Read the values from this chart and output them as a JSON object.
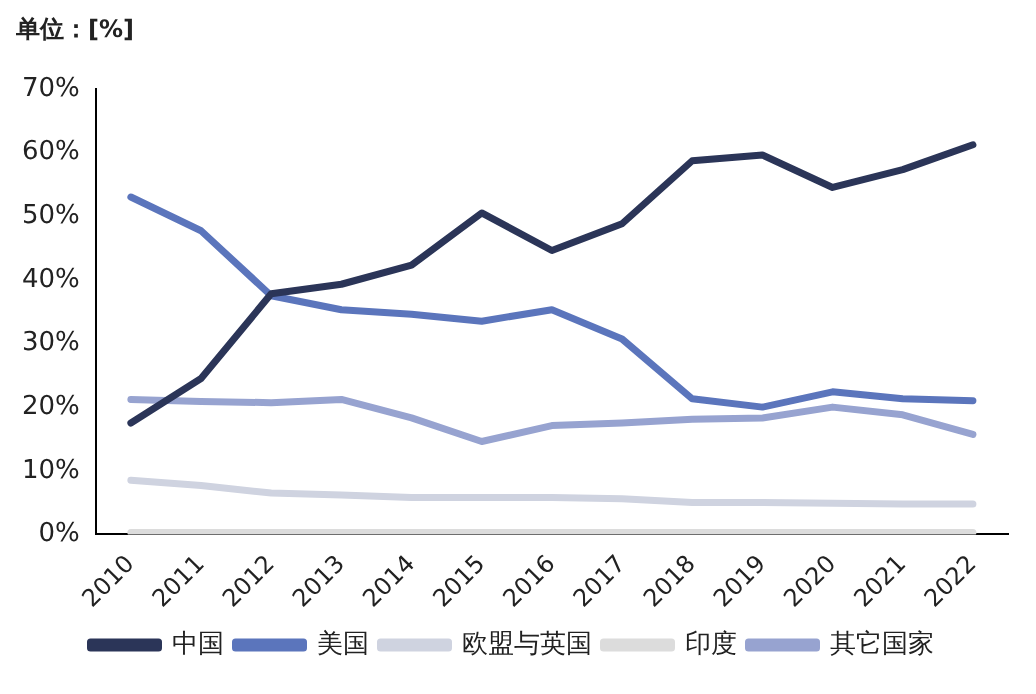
{
  "chart_data": {
    "type": "line",
    "title": "单位：[%]",
    "categories": [
      "2010",
      "2011",
      "2012",
      "2013",
      "2014",
      "2015",
      "2016",
      "2017",
      "2018",
      "2019",
      "2020",
      "2021",
      "2022"
    ],
    "series": [
      {
        "name": "中国",
        "color": "#2b3558",
        "values": [
          17.5,
          24.5,
          37.8,
          39.3,
          42.3,
          50.5,
          44.6,
          48.8,
          58.7,
          59.6,
          54.5,
          57.3,
          61.2
        ]
      },
      {
        "name": "美国",
        "color": "#5b75bc",
        "values": [
          53,
          47.7,
          37.5,
          35.3,
          34.6,
          33.5,
          35.3,
          30.7,
          21.3,
          20,
          22.4,
          21.3,
          21
        ]
      },
      {
        "name": "欧盟与英国",
        "color": "#cfd3e0",
        "values": [
          8.5,
          7.7,
          6.5,
          6.2,
          5.8,
          5.8,
          5.8,
          5.6,
          5,
          5,
          4.9,
          4.8,
          4.8
        ]
      },
      {
        "name": "印度",
        "color": "#dcdcdc",
        "values": [
          0.3,
          0.3,
          0.3,
          0.3,
          0.3,
          0.3,
          0.3,
          0.3,
          0.3,
          0.3,
          0.3,
          0.3,
          0.3
        ]
      },
      {
        "name": "其它国家",
        "color": "#97a3d0",
        "values": [
          21.2,
          20.9,
          20.7,
          21.2,
          18.3,
          14.6,
          17.1,
          17.5,
          18.1,
          18.3,
          20,
          18.8,
          15.7
        ]
      }
    ],
    "ylim": [
      0,
      70
    ],
    "yticks": [
      {
        "value": 0,
        "label": "0%"
      },
      {
        "value": 10,
        "label": "10%"
      },
      {
        "value": 20,
        "label": "20%"
      },
      {
        "value": 30,
        "label": "30%"
      },
      {
        "value": 40,
        "label": "40%"
      },
      {
        "value": 50,
        "label": "50%"
      },
      {
        "value": 60,
        "label": "60%"
      },
      {
        "value": 70,
        "label": "70%"
      }
    ],
    "grid": false,
    "legend": "bottom",
    "marker": "none",
    "line_style": "solid"
  }
}
